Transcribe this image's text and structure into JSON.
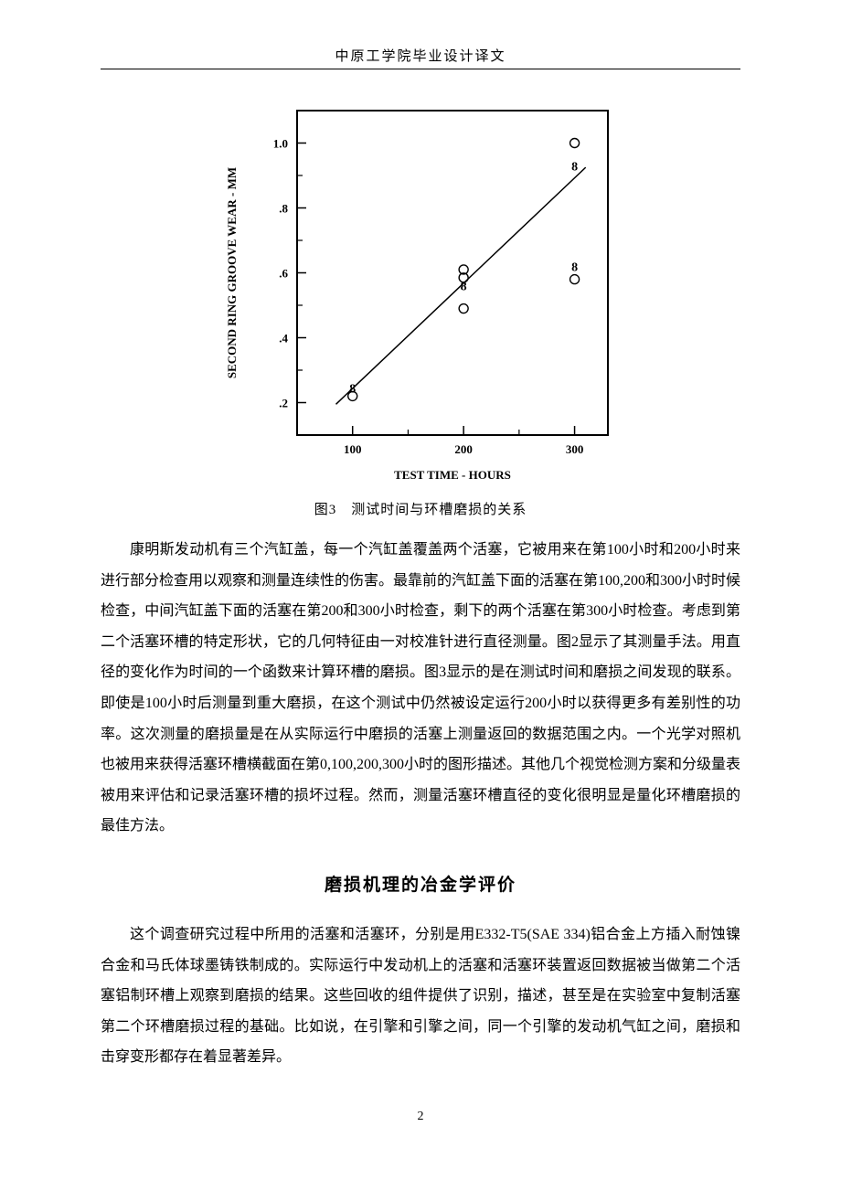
{
  "header": {
    "text": "中原工学院毕业设计译文"
  },
  "chart": {
    "type": "scatter",
    "title": "",
    "xlabel": "TEST TIME - HOURS",
    "ylabel": "SECOND RING GROOVE WEAR - MM",
    "xlim": [
      50,
      330
    ],
    "ylim": [
      0.1,
      1.1
    ],
    "xticks": [
      100,
      200,
      300
    ],
    "xtick_labels": [
      "100",
      "200",
      "300"
    ],
    "yticks": [
      0.2,
      0.4,
      0.6,
      0.8,
      1.0
    ],
    "ytick_labels": [
      ".2",
      ".4",
      ".6",
      ".8",
      "1.0"
    ],
    "label_fontsize": 13,
    "tick_fontsize": 13,
    "font_family": "serif",
    "font_weight": "bold",
    "points": [
      {
        "x": 100,
        "y": 0.22,
        "marker": "circle"
      },
      {
        "x": 100,
        "y": 0.245,
        "marker": "8"
      },
      {
        "x": 200,
        "y": 0.49,
        "marker": "circle"
      },
      {
        "x": 200,
        "y": 0.56,
        "marker": "8"
      },
      {
        "x": 200,
        "y": 0.585,
        "marker": "circle"
      },
      {
        "x": 200,
        "y": 0.61,
        "marker": "circle"
      },
      {
        "x": 300,
        "y": 0.58,
        "marker": "circle"
      },
      {
        "x": 300,
        "y": 0.62,
        "marker": "8"
      },
      {
        "x": 300,
        "y": 0.93,
        "marker": "8"
      },
      {
        "x": 300,
        "y": 1.0,
        "marker": "circle"
      }
    ],
    "trend_line": {
      "x1": 85,
      "y1": 0.195,
      "x2": 310,
      "y2": 0.925
    },
    "marker_size": 5,
    "marker_color": "#000000",
    "line_color": "#000000",
    "line_width": 1.5,
    "axis_color": "#000000",
    "axis_width": 2,
    "background_color": "#ffffff",
    "tick_length_major": 10,
    "tick_length_minor": 6
  },
  "figure_caption": "图3　测试时间与环槽磨损的关系",
  "paragraphs": {
    "p1": "康明斯发动机有三个汽缸盖，每一个汽缸盖覆盖两个活塞，它被用来在第100小时和200小时来进行部分检查用以观察和测量连续性的伤害。最靠前的汽缸盖下面的活塞在第100,200和300小时时候检查，中间汽缸盖下面的活塞在第200和300小时检查，剩下的两个活塞在第300小时检查。考虑到第二个活塞环槽的特定形状，它的几何特征由一对校准针进行直径测量。图2显示了其测量手法。用直径的变化作为时间的一个函数来计算环槽的磨损。图3显示的是在测试时间和磨损之间发现的联系。即使是100小时后测量到重大磨损，在这个测试中仍然被设定运行200小时以获得更多有差别性的功率。这次测量的磨损量是在从实际运行中磨损的活塞上测量返回的数据范围之内。一个光学对照机也被用来获得活塞环槽横截面在第0,100,200,300小时的图形描述。其他几个视觉检测方案和分级量表被用来评估和记录活塞环槽的损坏过程。然而，测量活塞环槽直径的变化很明显是量化环槽磨损的最佳方法。"
  },
  "section_heading": "磨损机理的冶金学评价",
  "paragraphs2": {
    "p2": "这个调查研究过程中所用的活塞和活塞环，分别是用E332-T5(SAE 334)铝合金上方插入耐蚀镍合金和马氏体球墨铸铁制成的。实际运行中发动机上的活塞和活塞环装置返回数据被当做第二个活塞铝制环槽上观察到磨损的结果。这些回收的组件提供了识别，描述，甚至是在实验室中复制活塞第二个环槽磨损过程的基础。比如说，在引擎和引擎之间，同一个引擎的发动机气缸之间，磨损和击穿变形都存在着显著差异。"
  },
  "page_number": "2"
}
